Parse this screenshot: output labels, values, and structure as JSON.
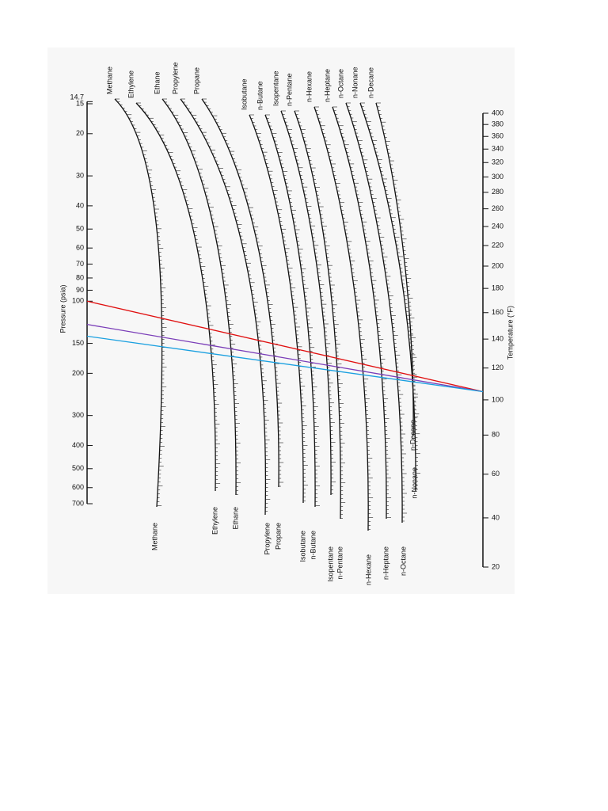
{
  "chart_data": {
    "type": "nomograph",
    "pressure_label": "Pressure (psia)",
    "temperature_label": "Temperature (°F)",
    "pressure_scale": "log",
    "pressure_lim": [
      15,
      700
    ],
    "pressure_ticks": [
      14.7,
      15,
      20,
      30,
      40,
      50,
      60,
      70,
      80,
      90,
      100,
      150,
      200,
      300,
      400,
      500,
      600,
      700
    ],
    "temperature_lim": [
      20,
      400
    ],
    "temperature_ticks": [
      400,
      380,
      360,
      340,
      320,
      300,
      280,
      260,
      240,
      220,
      200,
      180,
      160,
      140,
      120,
      100,
      80,
      60,
      40,
      20
    ],
    "components": [
      "Methane",
      "Ethylene",
      "Ethane",
      "Propylene",
      "Propane",
      "Isobutane",
      "n-Butane",
      "Isopentane",
      "n-Pentane",
      "n-Hexane",
      "n-Heptane",
      "n-Octane",
      "n-Nonane",
      "n-Decane"
    ],
    "lines": [
      {
        "color": "#e01010",
        "pressure": 100,
        "temperature": 105
      },
      {
        "color": "#7a3db8",
        "pressure": 125,
        "temperature": 105
      },
      {
        "color": "#1aa0e0",
        "pressure": 140,
        "temperature": 105
      }
    ]
  }
}
